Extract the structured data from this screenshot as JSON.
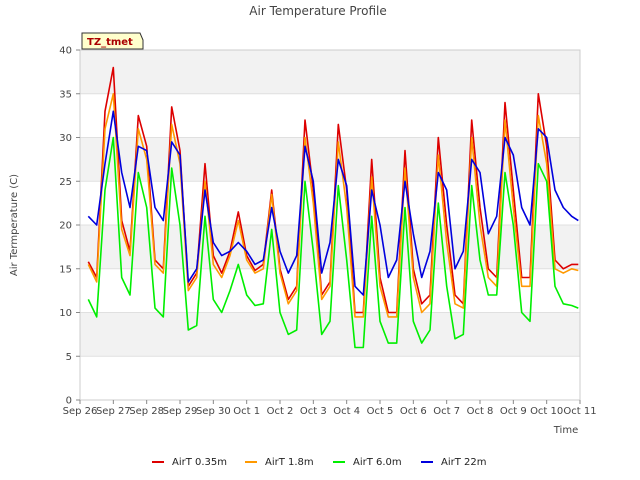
{
  "chart_data": {
    "type": "line",
    "title": "Air Temperature Profile",
    "xlabel": "Time",
    "ylabel": "Air Termperature (C)",
    "badge": "TZ_tmet",
    "ylim": [
      0,
      40
    ],
    "yticks": [
      0,
      5,
      10,
      15,
      20,
      25,
      30,
      35,
      40
    ],
    "xlim": [
      0,
      15
    ],
    "xticks": [
      0,
      1,
      2,
      3,
      4,
      5,
      6,
      7,
      8,
      9,
      10,
      11,
      12,
      13,
      14,
      15
    ],
    "xtick_labels": [
      "Sep 26",
      "Sep 27",
      "Sep 28",
      "Sep 29",
      "Sep 30",
      "Oct 1",
      "Oct 2",
      "Oct 3",
      "Oct 4",
      "Oct 5",
      "Oct 6",
      "Oct 7",
      "Oct 8",
      "Oct 9",
      "Oct 10",
      "Oct 11"
    ],
    "grid": "horizontal bands",
    "legend_position": "bottom",
    "series": [
      {
        "name": "AirT 0.35m",
        "color": "#dd0000",
        "x": [
          0.25,
          0.5,
          0.75,
          1.0,
          1.25,
          1.5,
          1.75,
          2.0,
          2.25,
          2.5,
          2.75,
          3.0,
          3.25,
          3.5,
          3.75,
          4.0,
          4.25,
          4.5,
          4.75,
          5.0,
          5.25,
          5.5,
          5.75,
          6.0,
          6.25,
          6.5,
          6.75,
          7.0,
          7.25,
          7.5,
          7.75,
          8.0,
          8.25,
          8.5,
          8.75,
          9.0,
          9.25,
          9.5,
          9.75,
          10.0,
          10.25,
          10.5,
          10.75,
          11.0,
          11.25,
          11.5,
          11.75,
          12.0,
          12.25,
          12.5,
          12.75,
          13.0,
          13.25,
          13.5,
          13.75,
          14.0,
          14.25,
          14.5,
          14.75,
          14.95
        ],
        "y": [
          15.8,
          14.0,
          33.0,
          38.0,
          20.5,
          17.0,
          32.5,
          29.0,
          16.0,
          15.0,
          33.5,
          28.5,
          13.0,
          14.5,
          27.0,
          16.5,
          14.5,
          17.0,
          21.5,
          16.5,
          14.8,
          15.5,
          24.0,
          15.0,
          11.5,
          13.0,
          32.0,
          24.0,
          12.0,
          13.5,
          31.5,
          24.0,
          10.0,
          10.0,
          27.5,
          14.0,
          10.0,
          10.0,
          28.5,
          15.0,
          11.0,
          12.0,
          30.0,
          20.0,
          12.0,
          11.0,
          32.0,
          22.0,
          15.0,
          14.0,
          34.0,
          24.0,
          14.0,
          14.0,
          35.0,
          29.0,
          16.0,
          15.0,
          15.5,
          15.5
        ]
      },
      {
        "name": "AirT 1.8m",
        "color": "#ff9900",
        "x": [
          0.25,
          0.5,
          0.75,
          1.0,
          1.25,
          1.5,
          1.75,
          2.0,
          2.25,
          2.5,
          2.75,
          3.0,
          3.25,
          3.5,
          3.75,
          4.0,
          4.25,
          4.5,
          4.75,
          5.0,
          5.25,
          5.5,
          5.75,
          6.0,
          6.25,
          6.5,
          6.75,
          7.0,
          7.25,
          7.5,
          7.75,
          8.0,
          8.25,
          8.5,
          8.75,
          9.0,
          9.25,
          9.5,
          9.75,
          10.0,
          10.25,
          10.5,
          10.75,
          11.0,
          11.25,
          11.5,
          11.75,
          12.0,
          12.25,
          12.5,
          12.75,
          13.0,
          13.25,
          13.5,
          13.75,
          14.0,
          14.25,
          14.5,
          14.75,
          14.95
        ],
        "y": [
          15.5,
          13.5,
          31.0,
          35.0,
          19.5,
          16.5,
          31.0,
          27.5,
          15.5,
          14.5,
          31.5,
          27.0,
          12.5,
          14.0,
          25.0,
          15.5,
          14.0,
          16.5,
          20.5,
          16.0,
          14.5,
          15.0,
          23.5,
          14.5,
          11.0,
          12.5,
          30.0,
          22.5,
          11.5,
          13.0,
          29.5,
          22.0,
          9.5,
          9.5,
          25.5,
          13.0,
          9.5,
          9.5,
          26.5,
          14.0,
          10.0,
          11.0,
          28.0,
          18.0,
          11.0,
          10.5,
          30.0,
          20.0,
          14.0,
          13.0,
          32.0,
          22.0,
          13.0,
          13.0,
          32.5,
          27.0,
          15.0,
          14.5,
          15.0,
          14.8
        ]
      },
      {
        "name": "AirT 6.0m",
        "color": "#00ee00",
        "x": [
          0.25,
          0.5,
          0.75,
          1.0,
          1.25,
          1.5,
          1.75,
          2.0,
          2.25,
          2.5,
          2.75,
          3.0,
          3.25,
          3.5,
          3.75,
          4.0,
          4.25,
          4.5,
          4.75,
          5.0,
          5.25,
          5.5,
          5.75,
          6.0,
          6.25,
          6.5,
          6.75,
          7.0,
          7.25,
          7.5,
          7.75,
          8.0,
          8.25,
          8.5,
          8.75,
          9.0,
          9.25,
          9.5,
          9.75,
          10.0,
          10.25,
          10.5,
          10.75,
          11.0,
          11.25,
          11.5,
          11.75,
          12.0,
          12.25,
          12.5,
          12.75,
          13.0,
          13.25,
          13.5,
          13.75,
          14.0,
          14.25,
          14.5,
          14.75,
          14.95
        ],
        "y": [
          11.5,
          9.5,
          24.0,
          30.0,
          14.0,
          12.0,
          26.0,
          22.0,
          10.5,
          9.5,
          26.5,
          20.0,
          8.0,
          8.5,
          21.0,
          11.5,
          10.0,
          12.5,
          15.5,
          12.0,
          10.8,
          11.0,
          19.5,
          10.0,
          7.5,
          8.0,
          25.0,
          17.0,
          7.5,
          9.0,
          24.5,
          16.0,
          6.0,
          6.0,
          21.0,
          9.0,
          6.5,
          6.5,
          22.0,
          9.0,
          6.5,
          8.0,
          22.5,
          13.0,
          7.0,
          7.5,
          24.5,
          16.0,
          12.0,
          12.0,
          26.0,
          20.0,
          10.0,
          9.0,
          27.0,
          25.0,
          13.0,
          11.0,
          10.8,
          10.5
        ]
      },
      {
        "name": "AirT 22m",
        "color": "#0000dd",
        "x": [
          0.25,
          0.5,
          0.75,
          1.0,
          1.25,
          1.5,
          1.75,
          2.0,
          2.25,
          2.5,
          2.75,
          3.0,
          3.25,
          3.5,
          3.75,
          4.0,
          4.25,
          4.5,
          4.75,
          5.0,
          5.25,
          5.5,
          5.75,
          6.0,
          6.25,
          6.5,
          6.75,
          7.0,
          7.25,
          7.5,
          7.75,
          8.0,
          8.25,
          8.5,
          8.75,
          9.0,
          9.25,
          9.5,
          9.75,
          10.0,
          10.25,
          10.5,
          10.75,
          11.0,
          11.25,
          11.5,
          11.75,
          12.0,
          12.25,
          12.5,
          12.75,
          13.0,
          13.25,
          13.5,
          13.75,
          14.0,
          14.25,
          14.5,
          14.75,
          14.95
        ],
        "y": [
          21.0,
          20.0,
          27.0,
          33.0,
          26.0,
          22.0,
          29.0,
          28.5,
          22.0,
          20.5,
          29.5,
          28.0,
          13.5,
          15.0,
          24.0,
          18.0,
          16.5,
          17.0,
          18.0,
          17.0,
          15.5,
          16.0,
          22.0,
          17.0,
          14.5,
          16.5,
          29.0,
          25.0,
          14.5,
          18.0,
          27.5,
          24.5,
          13.0,
          12.0,
          24.0,
          20.0,
          14.0,
          16.0,
          25.0,
          19.0,
          14.0,
          17.0,
          26.0,
          24.0,
          15.0,
          17.0,
          27.5,
          26.0,
          19.0,
          21.0,
          30.0,
          28.0,
          22.0,
          20.0,
          31.0,
          30.0,
          24.0,
          22.0,
          21.0,
          20.5
        ]
      }
    ]
  }
}
